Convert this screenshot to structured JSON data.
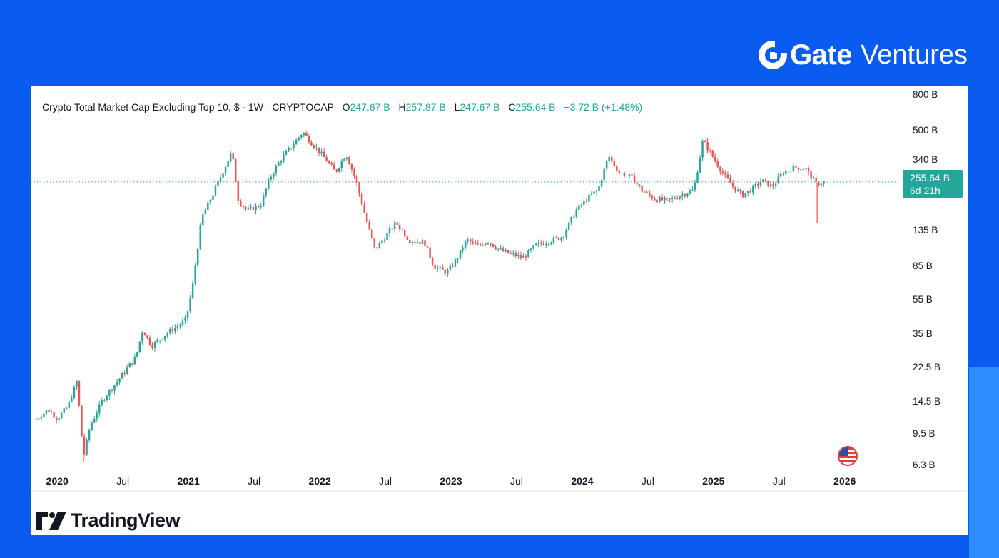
{
  "brand": {
    "name": "Gate",
    "sub": "Ventures",
    "icon": "gate-logo-icon"
  },
  "footer": {
    "logo_text": "TradingView",
    "icon": "tradingview-logo-icon"
  },
  "colors": {
    "background": "#0a5bef",
    "up": "#26a69a",
    "down": "#ef5350",
    "panel": "#ffffff"
  },
  "header": {
    "title": "Crypto Total Market Cap Excluding Top 10, $ · 1W · CRYPTOCAP",
    "o_label": "O",
    "o_value": "247.67 B",
    "h_label": "H",
    "h_value": "257.87 B",
    "l_label": "L",
    "l_value": "247.67 B",
    "c_label": "C",
    "c_value": "255.64 B",
    "change": "+3.72 B (+1.48%)"
  },
  "price_badge": {
    "price": "255.64 B",
    "countdown": "6d 21h"
  },
  "event_icon": "us-flag-icon",
  "chart_data": {
    "type": "candlestick",
    "title": "Crypto Total Market Cap Excluding Top 10, $ · 1W · CRYPTOCAP",
    "y_scale": "log",
    "ylim": [
      4.5,
      900
    ],
    "y_tick_labels": [
      "800 B",
      "500 B",
      "340 B",
      "135 B",
      "85 B",
      "55 B",
      "35 B",
      "22.5 B",
      "14.5 B",
      "9.5 B",
      "6.3 B"
    ],
    "y_tick_values": [
      800,
      500,
      340,
      135,
      85,
      55,
      35,
      22.5,
      14.5,
      9.5,
      6.3
    ],
    "x_tick_labels": [
      "2020",
      "Jul",
      "2021",
      "Jul",
      "2022",
      "Jul",
      "2023",
      "Jul",
      "2024",
      "Jul",
      "2025",
      "Jul",
      "2026"
    ],
    "x_tick_years": [
      2020.0,
      2020.5,
      2021.0,
      2021.5,
      2022.0,
      2022.5,
      2023.0,
      2023.5,
      2024.0,
      2024.5,
      2025.0,
      2025.5,
      2026.0
    ],
    "xlim": [
      2019.83,
      2026.42
    ],
    "last_price": 255.64,
    "trend_points": [
      [
        2019.84,
        11.5
      ],
      [
        2019.93,
        13
      ],
      [
        2020.0,
        11.6
      ],
      [
        2020.08,
        13.5
      ],
      [
        2020.15,
        19
      ],
      [
        2020.2,
        7
      ],
      [
        2020.25,
        10.5
      ],
      [
        2020.35,
        15
      ],
      [
        2020.45,
        18.5
      ],
      [
        2020.6,
        26
      ],
      [
        2020.65,
        37
      ],
      [
        2020.72,
        30
      ],
      [
        2020.85,
        36
      ],
      [
        2020.98,
        42
      ],
      [
        2021.03,
        65
      ],
      [
        2021.1,
        160
      ],
      [
        2021.2,
        230
      ],
      [
        2021.33,
        380
      ],
      [
        2021.38,
        200
      ],
      [
        2021.45,
        175
      ],
      [
        2021.55,
        190
      ],
      [
        2021.62,
        270
      ],
      [
        2021.7,
        340
      ],
      [
        2021.8,
        420
      ],
      [
        2021.87,
        490
      ],
      [
        2021.97,
        400
      ],
      [
        2022.05,
        340
      ],
      [
        2022.12,
        290
      ],
      [
        2022.2,
        370
      ],
      [
        2022.27,
        270
      ],
      [
        2022.35,
        160
      ],
      [
        2022.42,
        105
      ],
      [
        2022.5,
        125
      ],
      [
        2022.58,
        150
      ],
      [
        2022.68,
        120
      ],
      [
        2022.8,
        115
      ],
      [
        2022.87,
        85
      ],
      [
        2022.97,
        78
      ],
      [
        2023.05,
        95
      ],
      [
        2023.12,
        120
      ],
      [
        2023.2,
        110
      ],
      [
        2023.28,
        118
      ],
      [
        2023.37,
        105
      ],
      [
        2023.45,
        100
      ],
      [
        2023.55,
        95
      ],
      [
        2023.65,
        112
      ],
      [
        2023.75,
        118
      ],
      [
        2023.85,
        125
      ],
      [
        2023.95,
        175
      ],
      [
        2024.05,
        210
      ],
      [
        2024.12,
        230
      ],
      [
        2024.2,
        360
      ],
      [
        2024.28,
        290
      ],
      [
        2024.38,
        270
      ],
      [
        2024.45,
        230
      ],
      [
        2024.55,
        205
      ],
      [
        2024.65,
        200
      ],
      [
        2024.75,
        215
      ],
      [
        2024.85,
        230
      ],
      [
        2024.92,
        440
      ],
      [
        2025.0,
        350
      ],
      [
        2025.08,
        280
      ],
      [
        2025.15,
        240
      ],
      [
        2025.22,
        215
      ],
      [
        2025.3,
        235
      ],
      [
        2025.37,
        260
      ],
      [
        2025.45,
        240
      ],
      [
        2025.53,
        290
      ],
      [
        2025.62,
        310
      ],
      [
        2025.7,
        305
      ],
      [
        2025.78,
        250
      ],
      [
        2025.85,
        255.64
      ]
    ],
    "wicks": [
      {
        "x": 2020.2,
        "low": 6.6
      },
      {
        "x": 2025.79,
        "low": 150
      }
    ]
  }
}
